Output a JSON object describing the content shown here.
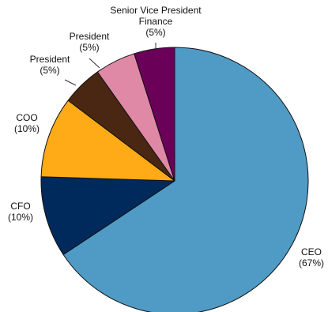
{
  "chart_data": {
    "type": "pie",
    "title": "",
    "start_angle_deg": 0,
    "direction": "clockwise",
    "slices": [
      {
        "label": "CEO",
        "pct_label": "(67%)",
        "value": 67,
        "color": "#4f9bc6"
      },
      {
        "label": "CFO",
        "pct_label": "(10%)",
        "value": 10,
        "color": "#002a5c"
      },
      {
        "label": "COO",
        "pct_label": "(10%)",
        "value": 10,
        "color": "#ffab18"
      },
      {
        "label": "President",
        "pct_label": "(5%)",
        "value": 5,
        "color": "#4a2713"
      },
      {
        "label": "President",
        "pct_label": "(5%)",
        "value": 5,
        "color": "#df89a7"
      },
      {
        "label": "Senior Vice President Finance",
        "label_lines": [
          "Senior Vice President",
          "Finance"
        ],
        "pct_label": "(5%)",
        "value": 5,
        "color": "#6b0058"
      }
    ]
  }
}
